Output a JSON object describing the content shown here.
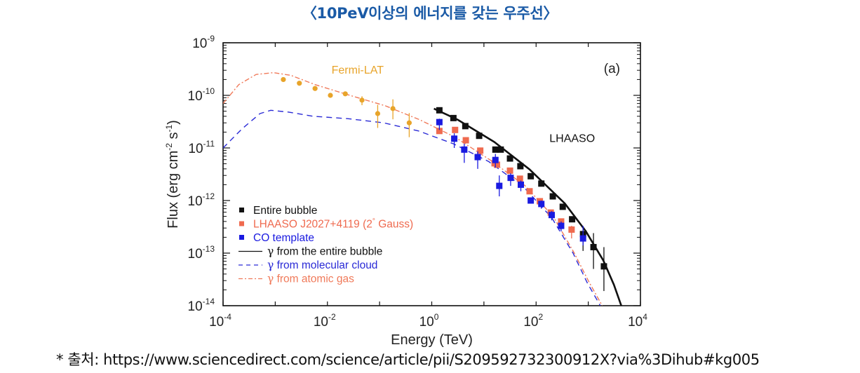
{
  "page": {
    "title": "〈10PeV이상의 에너지를 갖는 우주선〉",
    "source": "* 출처: https://www.sciencedirect.com/science/article/pii/S209592732300912X?via%3Dihub#kg005"
  },
  "chart_data": {
    "type": "scatter",
    "panel_label": "(a)",
    "xlabel": "Energy (TeV)",
    "ylabel": "Flux (erg cm-2 s-1)",
    "ylabel_parts": {
      "main": "Flux (erg cm",
      "exp1": "-2",
      "mid": " s",
      "exp2": "-1",
      "end": ")"
    },
    "xscale": "log",
    "yscale": "log",
    "xlim": [
      0.0001,
      10000
    ],
    "ylim": [
      1e-14,
      1e-09
    ],
    "x_ticks": [
      {
        "base": "10",
        "exp": "-4",
        "value": 0.0001
      },
      {
        "base": "10",
        "exp": "-2",
        "value": 0.01
      },
      {
        "base": "10",
        "exp": "0",
        "value": 1
      },
      {
        "base": "10",
        "exp": "2",
        "value": 100
      },
      {
        "base": "10",
        "exp": "4",
        "value": 10000
      }
    ],
    "y_ticks": [
      {
        "base": "10",
        "exp": "-9",
        "value": 1e-09
      },
      {
        "base": "10",
        "exp": "-10",
        "value": 1e-10
      },
      {
        "base": "10",
        "exp": "-11",
        "value": 1e-11
      },
      {
        "base": "10",
        "exp": "-12",
        "value": 1e-12
      },
      {
        "base": "10",
        "exp": "-13",
        "value": 1e-13
      },
      {
        "base": "10",
        "exp": "-14",
        "value": 1e-14
      }
    ],
    "annotations": [
      {
        "text": "Fermi-LAT",
        "x": 0.012,
        "y": 2.6e-10,
        "color": "#e8a42a"
      },
      {
        "text": "LHAASO",
        "x": 180,
        "y": 1.3e-11,
        "color": "#111111"
      }
    ],
    "legend_position": "lower-left",
    "series": [
      {
        "name": "Entire bubble",
        "kind": "points",
        "marker": "square",
        "color": "#111111",
        "points": [
          {
            "x": 1.4,
            "y": 5.2e-11
          },
          {
            "x": 2.6,
            "y": 3.7e-11
          },
          {
            "x": 4.4,
            "y": 2.6e-11
          },
          {
            "x": 8.1,
            "y": 1.7e-11
          },
          {
            "x": 16.6,
            "y": 9.3e-12
          },
          {
            "x": 21,
            "y": 9.3e-12
          },
          {
            "x": 31.6,
            "y": 6.3e-12
          },
          {
            "x": 50,
            "y": 4.5e-12
          },
          {
            "x": 79,
            "y": 2.9e-12
          },
          {
            "x": 126,
            "y": 2.1e-12
          },
          {
            "x": 209,
            "y": 1.2e-12
          },
          {
            "x": 324,
            "y": 7.6e-13
          },
          {
            "x": 490,
            "y": 4.4e-13
          },
          {
            "x": 794,
            "y": 2.3e-13,
            "ylo": 1.1e-13,
            "yhi": 3.2e-13
          },
          {
            "x": 1259,
            "y": 1.3e-13,
            "ylo": 5e-14,
            "yhi": 2.4e-13
          },
          {
            "x": 1995,
            "y": 5.6e-14,
            "ylo": 1.9e-14,
            "yhi": 1.3e-13
          }
        ]
      },
      {
        "name": "LHAASO J2027+4119 (2° Gauss)",
        "legend_main": "LHAASO J2027+4119 (2",
        "legend_sup": "°",
        "legend_end": " Gauss)",
        "kind": "points",
        "marker": "square",
        "color": "#ef6a4f",
        "points": [
          {
            "x": 1.4,
            "y": 2.1e-11
          },
          {
            "x": 2.8,
            "y": 2.2e-11
          },
          {
            "x": 4.5,
            "y": 1.4e-11
          },
          {
            "x": 8.5,
            "y": 8.9e-12
          },
          {
            "x": 16,
            "y": 5.1e-12
          },
          {
            "x": 17.8,
            "y": 4.8e-12
          },
          {
            "x": 31.6,
            "y": 3.7e-12
          },
          {
            "x": 49,
            "y": 2.6e-12
          },
          {
            "x": 75,
            "y": 1.5e-12
          },
          {
            "x": 118,
            "y": 9.7e-13
          },
          {
            "x": 191,
            "y": 5.9e-13
          },
          {
            "x": 302,
            "y": 4e-13
          },
          {
            "x": 479,
            "y": 2.8e-13,
            "ylo": 1.9e-13,
            "yhi": 3.3e-13
          }
        ]
      },
      {
        "name": "CO template",
        "kind": "points",
        "marker": "square",
        "color": "#1a1ae0",
        "points": [
          {
            "x": 1.4,
            "y": 3.1e-11,
            "ylo": 2.2e-11,
            "yhi": 3.6e-11
          },
          {
            "x": 2.7,
            "y": 1.5e-11,
            "ylo": 1e-11,
            "yhi": 1.9e-11
          },
          {
            "x": 4.2,
            "y": 9.3e-12,
            "ylo": 5.2e-12,
            "yhi": 1.2e-11
          },
          {
            "x": 7.6,
            "y": 6.7e-12,
            "ylo": 4e-12,
            "yhi": 8.6e-12
          },
          {
            "x": 16.6,
            "y": 5.9e-12,
            "ylo": 4.2e-12,
            "yhi": 7.7e-12
          },
          {
            "x": 19.7,
            "y": 1.9e-12,
            "ylo": 1.2e-12,
            "yhi": 3e-12
          },
          {
            "x": 32.5,
            "y": 2.7e-12,
            "ylo": 1.9e-12,
            "yhi": 3.3e-12
          },
          {
            "x": 51,
            "y": 2e-12,
            "ylo": 1.5e-12,
            "yhi": 2.4e-12
          },
          {
            "x": 79,
            "y": 1e-12
          },
          {
            "x": 126,
            "y": 8.6e-13,
            "ylo": 7e-13,
            "yhi": 1e-12
          },
          {
            "x": 199,
            "y": 5.3e-13,
            "ylo": 4.2e-13,
            "yhi": 6.3e-13
          },
          {
            "x": 302,
            "y": 3.3e-13,
            "ylo": 2.6e-13,
            "yhi": 4e-13
          },
          {
            "x": 794,
            "y": 1.9e-13,
            "ylo": 1.4e-13,
            "yhi": 3.3e-13
          }
        ]
      },
      {
        "name": "Fermi-LAT",
        "kind": "points",
        "marker": "circle",
        "color": "#e8a42a",
        "in_legend": false,
        "points": [
          {
            "x": 0.00143,
            "y": 2e-10
          },
          {
            "x": 0.0029,
            "y": 1.7e-10
          },
          {
            "x": 0.0058,
            "y": 1.35e-10
          },
          {
            "x": 0.0114,
            "y": 1e-10
          },
          {
            "x": 0.022,
            "y": 1.07e-10
          },
          {
            "x": 0.046,
            "y": 8.1e-11,
            "ylo": 6.5e-11,
            "yhi": 9.6e-11
          },
          {
            "x": 0.092,
            "y": 4.5e-11,
            "ylo": 2.4e-11,
            "yhi": 6.6e-11
          },
          {
            "x": 0.18,
            "y": 5.6e-11,
            "ylo": 3.5e-11,
            "yhi": 8.4e-11
          },
          {
            "x": 0.37,
            "y": 3e-11,
            "ylo": 1.6e-11,
            "yhi": 4.6e-11
          }
        ]
      },
      {
        "name": "γ from the entire bubble",
        "legend_prefix": "γ",
        "legend_rest": " from the entire bubble",
        "kind": "line",
        "style": "solid",
        "color": "#111111",
        "points": [
          {
            "x": 1.1,
            "y": 5.6e-11
          },
          {
            "x": 3.2,
            "y": 3.4e-11
          },
          {
            "x": 15.8,
            "y": 1.3e-11
          },
          {
            "x": 75,
            "y": 3.9e-12
          },
          {
            "x": 355,
            "y": 8.8e-13
          },
          {
            "x": 900,
            "y": 2.6e-13
          },
          {
            "x": 1950,
            "y": 7.2e-14
          },
          {
            "x": 3100,
            "y": 2.5e-14
          },
          {
            "x": 4300,
            "y": 1e-14
          }
        ]
      },
      {
        "name": "γ from molecular cloud",
        "legend_prefix": "γ",
        "legend_rest": " from molecular cloud",
        "kind": "line",
        "style": "dashed",
        "color": "#2a2ad6",
        "points": [
          {
            "x": 0.0001,
            "y": 1e-11
          },
          {
            "x": 0.00023,
            "y": 2.3e-11
          },
          {
            "x": 0.00051,
            "y": 4.5e-11
          },
          {
            "x": 0.00082,
            "y": 5.2e-11
          },
          {
            "x": 0.0018,
            "y": 4.8e-11
          },
          {
            "x": 0.0053,
            "y": 4e-11
          },
          {
            "x": 0.025,
            "y": 3.6e-11
          },
          {
            "x": 0.12,
            "y": 3e-11
          },
          {
            "x": 0.56,
            "y": 2.1e-11
          },
          {
            "x": 2.6,
            "y": 1.2e-11
          },
          {
            "x": 12.4,
            "y": 5.5e-12
          },
          {
            "x": 58,
            "y": 1.8e-12
          },
          {
            "x": 200,
            "y": 4.7e-13
          },
          {
            "x": 510,
            "y": 1e-13
          },
          {
            "x": 960,
            "y": 2.7e-14
          },
          {
            "x": 1700,
            "y": 1e-14
          }
        ]
      },
      {
        "name": "γ from atomic gas",
        "legend_prefix": "γ",
        "legend_rest": " from atomic gas",
        "kind": "line",
        "style": "dashdot",
        "color": "#f07a5a",
        "points": [
          {
            "x": 0.0001,
            "y": 7e-11
          },
          {
            "x": 0.0002,
            "y": 1.6e-10
          },
          {
            "x": 0.00043,
            "y": 2.5e-10
          },
          {
            "x": 0.00093,
            "y": 2.7e-10
          },
          {
            "x": 0.002,
            "y": 2.4e-10
          },
          {
            "x": 0.0058,
            "y": 1.6e-10
          },
          {
            "x": 0.027,
            "y": 1e-10
          },
          {
            "x": 0.13,
            "y": 6.3e-11
          },
          {
            "x": 0.6,
            "y": 3.4e-11
          },
          {
            "x": 2.8,
            "y": 1.6e-11
          },
          {
            "x": 13.2,
            "y": 5.9e-12
          },
          {
            "x": 62,
            "y": 1.9e-12
          },
          {
            "x": 215,
            "y": 4.9e-13
          },
          {
            "x": 540,
            "y": 1e-13
          },
          {
            "x": 1000,
            "y": 3e-14
          },
          {
            "x": 1850,
            "y": 1e-14
          }
        ]
      }
    ]
  }
}
